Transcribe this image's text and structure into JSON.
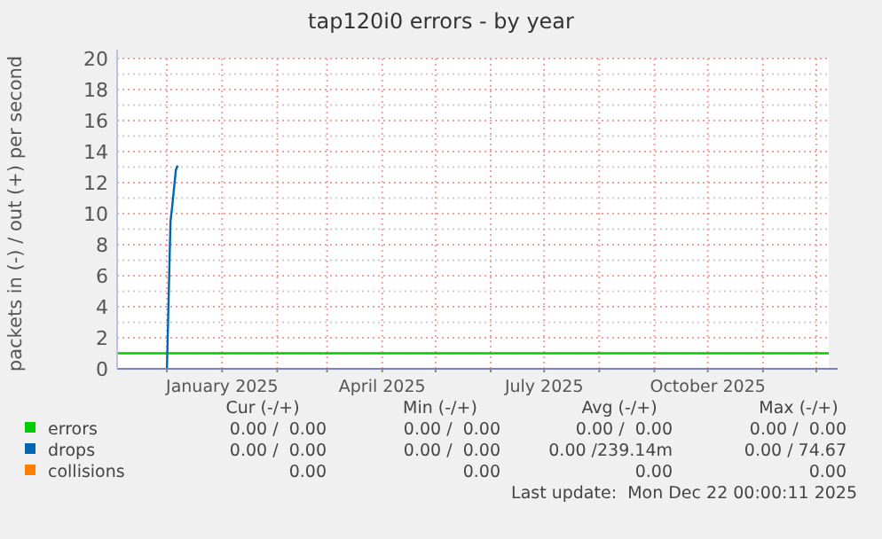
{
  "chart_data": {
    "type": "line",
    "title": "tap120i0 errors - by year",
    "ylabel": "packets in (-) / out (+) per second",
    "xlim": [
      "2024-11-03",
      "2025-12-08"
    ],
    "xticks": [
      {
        "value": "2024-12-01",
        "label": null
      },
      {
        "value": "2025-01-01",
        "label": "January 2025"
      },
      {
        "value": "2025-02-01",
        "label": null
      },
      {
        "value": "2025-03-01",
        "label": null
      },
      {
        "value": "2025-04-01",
        "label": "April 2025"
      },
      {
        "value": "2025-05-01",
        "label": null
      },
      {
        "value": "2025-06-01",
        "label": null
      },
      {
        "value": "2025-07-01",
        "label": "July 2025"
      },
      {
        "value": "2025-08-01",
        "label": null
      },
      {
        "value": "2025-09-01",
        "label": null
      },
      {
        "value": "2025-10-01",
        "label": "October 2025"
      },
      {
        "value": "2025-11-01",
        "label": null
      },
      {
        "value": "2025-12-01",
        "label": null
      }
    ],
    "ylim": [
      0,
      20
    ],
    "yticks": [
      0,
      2,
      4,
      6,
      8,
      10,
      12,
      14,
      16,
      18,
      20
    ],
    "grid": true,
    "legend": "bottom",
    "series": [
      {
        "name": "errors",
        "color": "#00cc00",
        "x": [
          "2024-11-03",
          "2025-12-08"
        ],
        "values": [
          1,
          1
        ]
      },
      {
        "name": "drops",
        "color": "#0066b3",
        "x": [
          "2024-12-01",
          "2024-12-03",
          "2024-12-04",
          "2024-12-06",
          "2024-12-07"
        ],
        "values": [
          0,
          9.5,
          10.5,
          12.8,
          13.1
        ]
      },
      {
        "name": "collisions",
        "color": "#ff8000"
      }
    ],
    "annotations": [
      "Cur (-/+)",
      "Min (-/+)",
      "Avg (-/+)",
      "Max (-/+)",
      "0.00 /  0.00",
      "0.00 /  0.00",
      "0.00 /  0.00",
      "0.00 /  0.00",
      "0.00 /  0.00",
      "0.00 /  0.00",
      "0.00 /239.14m",
      "0.00 / 74.67",
      "0.00",
      "0.00",
      "0.00",
      "0.00",
      "Last update:  Mon Dec 22 00:00:11 2025"
    ]
  }
}
